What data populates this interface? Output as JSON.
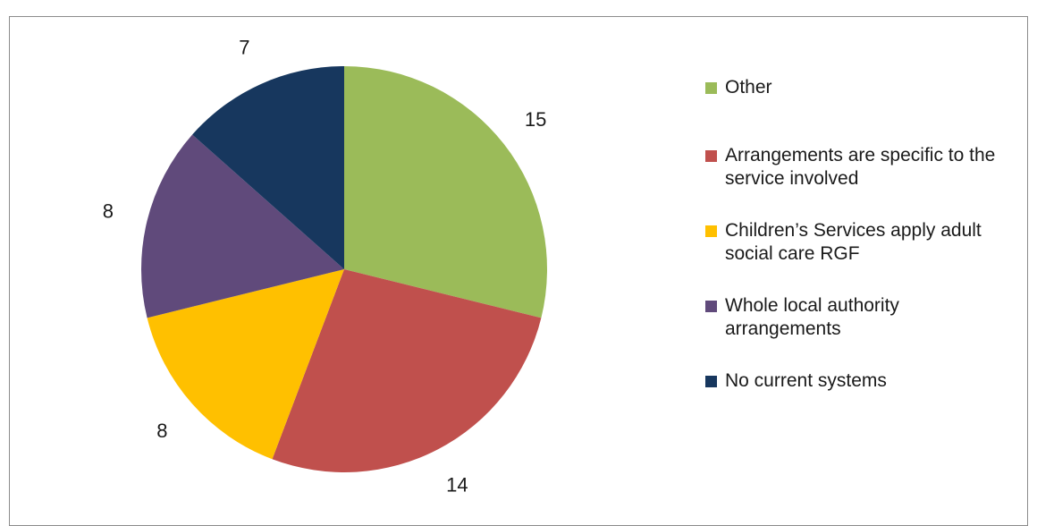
{
  "chart_data": {
    "type": "pie",
    "title": "",
    "categories": [
      "Other",
      "Arrangements are specific to the service involved",
      "Children’s Services apply adult social care RGF",
      "Whole local authority arrangements",
      "No current systems"
    ],
    "values": [
      15,
      14,
      8,
      8,
      7
    ],
    "colors": [
      "#9BBB59",
      "#C0504D",
      "#FFC000",
      "#604A7B",
      "#17375E"
    ],
    "data_labels": [
      "15",
      "14",
      "8",
      "8",
      "7"
    ],
    "start_angle_deg": 0,
    "direction": "clockwise",
    "legend_position": "right"
  },
  "legend": {
    "items": [
      {
        "label_lines": [
          "Other"
        ],
        "color": "#9BBB59"
      },
      {
        "label_lines": [
          "Arrangements are specific to the",
          "service involved"
        ],
        "color": "#C0504D"
      },
      {
        "label_lines": [
          "Children’s Services apply adult",
          "social care RGF"
        ],
        "color": "#FFC000"
      },
      {
        "label_lines": [
          "Whole local authority",
          "arrangements"
        ],
        "color": "#604A7B"
      },
      {
        "label_lines": [
          "No current systems"
        ],
        "color": "#17375E"
      }
    ]
  }
}
